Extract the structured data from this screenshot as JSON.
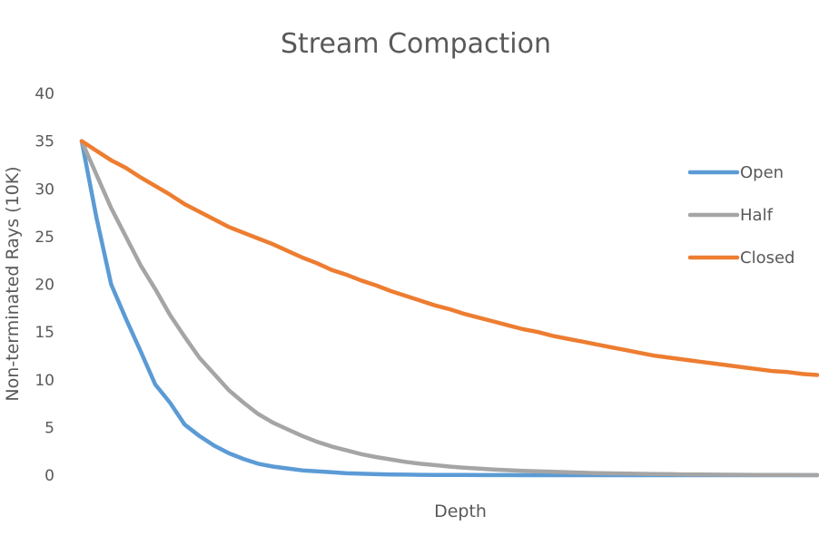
{
  "chart_data": {
    "type": "line",
    "title": "Stream Compaction",
    "xlabel": "Depth",
    "ylabel": "Non-terminated Rays (10K)",
    "ylim": [
      0,
      40
    ],
    "yticks": [
      0,
      5,
      10,
      15,
      20,
      25,
      30,
      35,
      40
    ],
    "grid": false,
    "legend_position": "right",
    "x": [
      0,
      1,
      2,
      3,
      4,
      5,
      6,
      7,
      8,
      9,
      10,
      11,
      12,
      13,
      14,
      15,
      16,
      17,
      18,
      19,
      20,
      21,
      22,
      23,
      24,
      25,
      26,
      27,
      28,
      29,
      30,
      31,
      32,
      33,
      34,
      35,
      36,
      37,
      38,
      39,
      40,
      41,
      42,
      43,
      44,
      45,
      46,
      47,
      48,
      49,
      50
    ],
    "series": [
      {
        "name": "Open",
        "color": "#5B9BD5",
        "values": [
          35.0,
          27.0,
          20.0,
          16.4,
          13.0,
          9.5,
          7.6,
          5.3,
          4.1,
          3.1,
          2.3,
          1.7,
          1.2,
          0.9,
          0.7,
          0.5,
          0.4,
          0.3,
          0.2,
          0.15,
          0.1,
          0.08,
          0.06,
          0.04,
          0.03,
          0.02,
          0.02,
          0.01,
          0.01,
          0.01,
          0.0,
          0.0,
          0.0,
          0.0,
          0.0,
          0.0,
          0.0,
          0.0,
          0.0,
          0.0,
          0.0,
          0.0,
          0.0,
          0.0,
          0.0,
          0.0,
          0.0,
          0.0,
          0.0,
          0.0,
          0.0
        ]
      },
      {
        "name": "Half",
        "color": "#A5A5A5",
        "values": [
          35.0,
          31.5,
          28.0,
          25.0,
          22.0,
          19.5,
          16.8,
          14.5,
          12.3,
          10.6,
          8.9,
          7.6,
          6.4,
          5.5,
          4.8,
          4.1,
          3.5,
          3.0,
          2.6,
          2.2,
          1.9,
          1.65,
          1.4,
          1.2,
          1.05,
          0.9,
          0.78,
          0.68,
          0.6,
          0.52,
          0.45,
          0.4,
          0.35,
          0.3,
          0.26,
          0.22,
          0.19,
          0.16,
          0.14,
          0.12,
          0.1,
          0.08,
          0.07,
          0.06,
          0.05,
          0.04,
          0.03,
          0.02,
          0.02,
          0.01,
          0.01
        ]
      },
      {
        "name": "Closed",
        "color": "#ED7D31",
        "values": [
          35.0,
          34.0,
          33.0,
          32.2,
          31.2,
          30.3,
          29.4,
          28.4,
          27.6,
          26.8,
          26.0,
          25.4,
          24.8,
          24.2,
          23.5,
          22.8,
          22.2,
          21.5,
          21.0,
          20.4,
          19.9,
          19.3,
          18.8,
          18.3,
          17.8,
          17.4,
          16.9,
          16.5,
          16.1,
          15.7,
          15.3,
          15.0,
          14.6,
          14.3,
          14.0,
          13.7,
          13.4,
          13.1,
          12.8,
          12.5,
          12.3,
          12.1,
          11.9,
          11.7,
          11.5,
          11.3,
          11.1,
          10.9,
          10.8,
          10.6,
          10.5
        ]
      }
    ]
  }
}
